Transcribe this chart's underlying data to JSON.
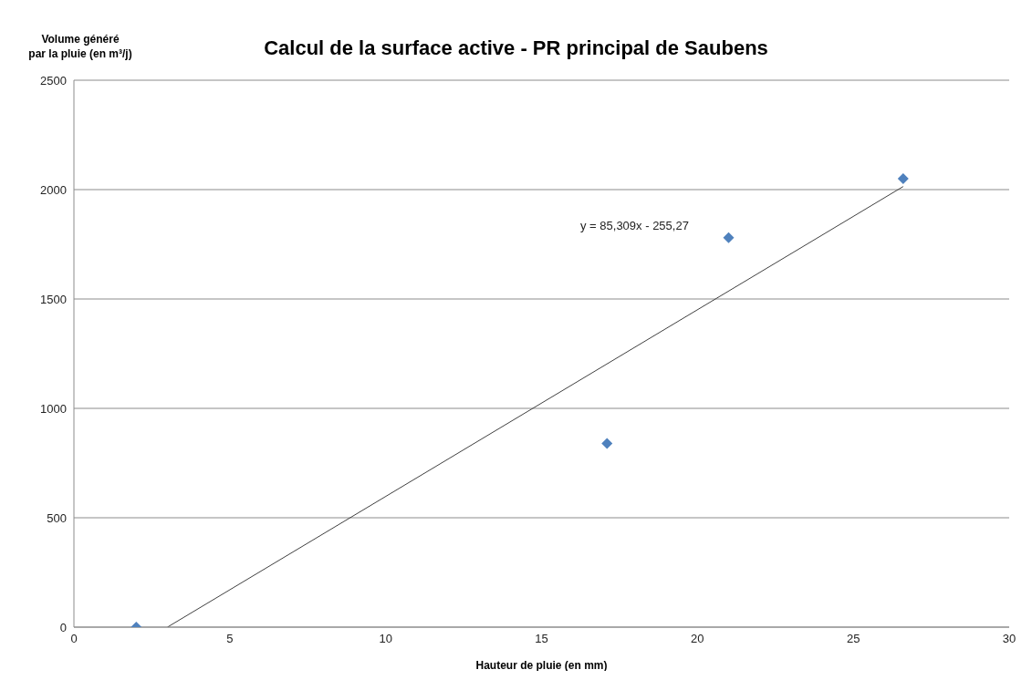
{
  "chart_data": {
    "type": "scatter",
    "title": "Calcul de la surface active  -  PR principal de Saubens",
    "xlabel": "Hauteur de pluie (en mm)",
    "ylabel": "Volume généré\npar la pluie (en m³/j)",
    "x": [
      2,
      17.1,
      21,
      26.6
    ],
    "values": [
      0,
      840,
      1780,
      2050
    ],
    "color": "#4f81bd",
    "marker": "diamond",
    "series": [
      {
        "type": "line",
        "x": [
          3,
          26.6
        ],
        "values": [
          0,
          2014
        ],
        "color": "#404040",
        "marker": "none"
      }
    ],
    "annotations": [
      "y = 85,309x - 255,27"
    ],
    "xlim": [
      0,
      30
    ],
    "xticks": [
      0,
      5,
      10,
      15,
      20,
      25,
      30
    ],
    "ylim": [
      0,
      2500
    ],
    "yticks": [
      0,
      500,
      1000,
      1500,
      2000,
      2500
    ],
    "grid": "y",
    "legend": false
  }
}
